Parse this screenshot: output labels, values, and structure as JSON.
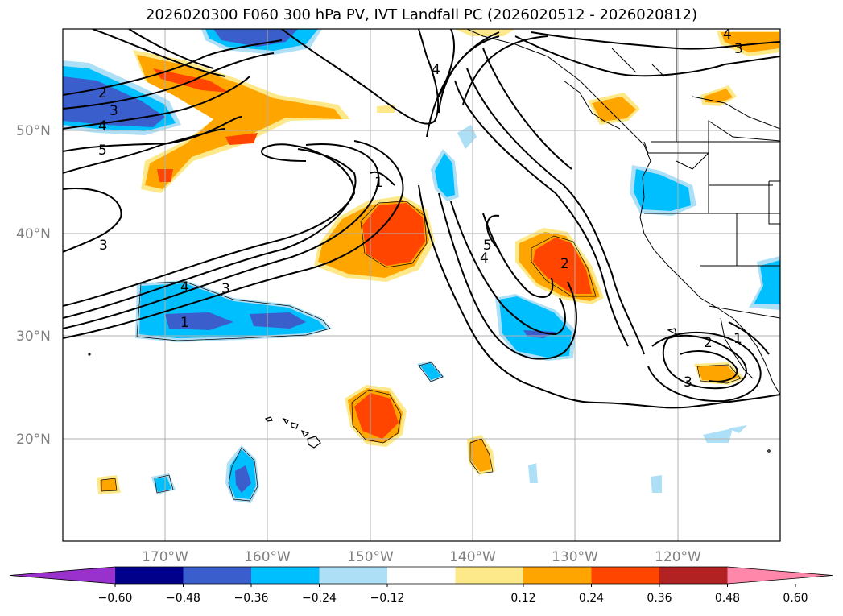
{
  "title": "2026020300 F060 300 hPa PV, IVT Landfall PC (2026020512 - 2026020812)",
  "colors": {
    "pos_012": "#fde98a",
    "pos_024": "#ffa500",
    "pos_036": "#ff4500",
    "pos_048": "#b22222",
    "pos_060": "#ff88aa",
    "neg_012": "#ade0f7",
    "neg_024": "#00bfff",
    "neg_036": "#3a5fcd",
    "neg_048": "#00008b",
    "neg_060": "#9932cc",
    "grid": "#b0b0b0",
    "contour": "#000000"
  },
  "map": {
    "lat_labels": [
      "50°N",
      "40°N",
      "30°N",
      "20°N"
    ],
    "lon_labels": [
      "170°W",
      "160°W",
      "150°W",
      "140°W",
      "130°W",
      "120°W"
    ]
  },
  "colorbar": {
    "ticks": [
      "−0.60",
      "−0.48",
      "−0.36",
      "−0.24",
      "−0.12",
      "0.12",
      "0.24",
      "0.36",
      "0.48",
      "0.60"
    ],
    "colors": [
      "#9932cc",
      "#00008b",
      "#3a5fcd",
      "#00bfff",
      "#ade0f7",
      "#ffffff",
      "#fde98a",
      "#ffa500",
      "#ff4500",
      "#b22222",
      "#ff88aa"
    ]
  },
  "contour_labels": [
    "1",
    "2",
    "3",
    "4",
    "5"
  ]
}
